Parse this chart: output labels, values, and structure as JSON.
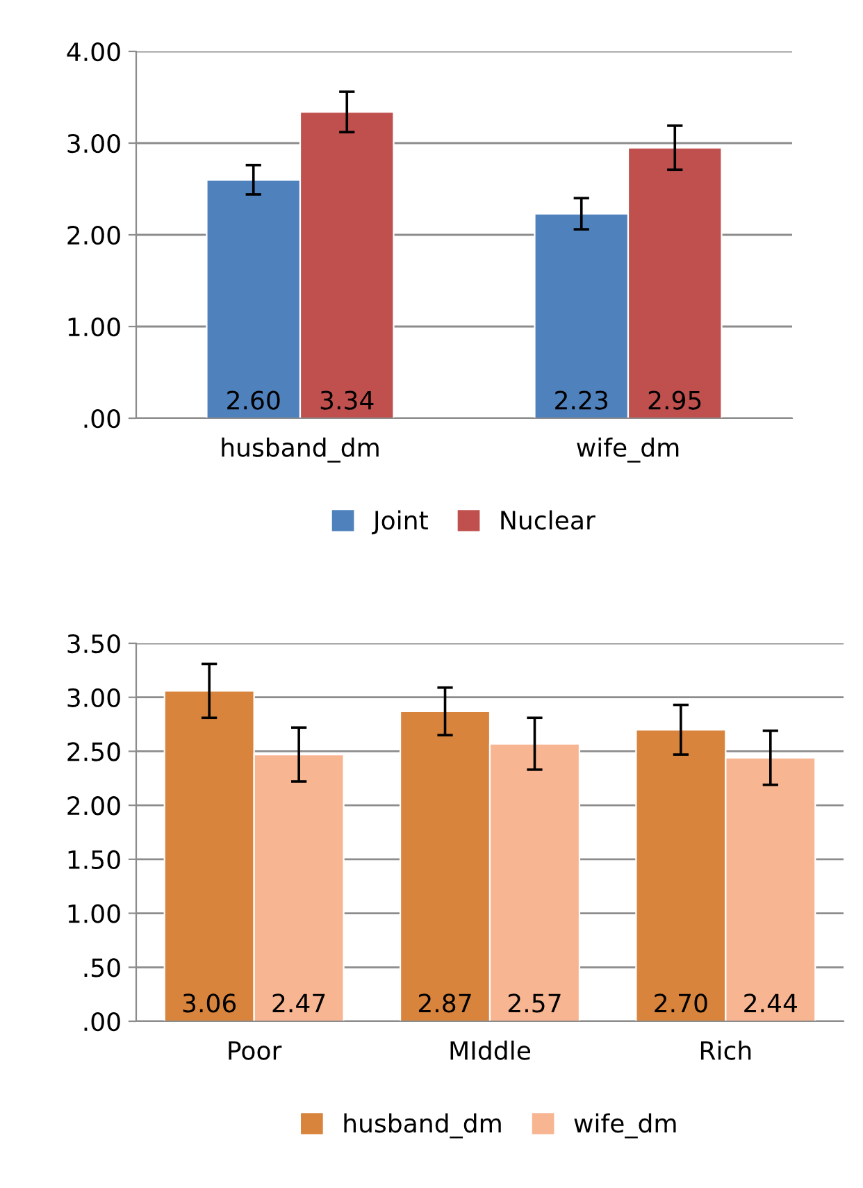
{
  "chart_data": [
    {
      "type": "bar",
      "categories": [
        "husband_dm",
        "wife_dm"
      ],
      "ylim": [
        0,
        4
      ],
      "yticks": [
        {
          "value": 0,
          "label": ".00"
        },
        {
          "value": 1,
          "label": "1.00"
        },
        {
          "value": 2,
          "label": "2.00"
        },
        {
          "value": 3,
          "label": "3.00"
        },
        {
          "value": 4,
          "label": "4.00"
        }
      ],
      "grid": "y",
      "legend": "bottom",
      "series": [
        {
          "name": "Joint",
          "color": "#4f81bd",
          "values": [
            2.6,
            2.23
          ],
          "errors": [
            0.16,
            0.17
          ],
          "value_labels": [
            "2.60",
            "2.23"
          ]
        },
        {
          "name": "Nuclear",
          "color": "#c0504d",
          "values": [
            3.34,
            2.95
          ],
          "errors": [
            0.22,
            0.24
          ],
          "value_labels": [
            "3.34",
            "2.95"
          ]
        }
      ]
    },
    {
      "type": "bar",
      "categories": [
        "Poor",
        "MIddle",
        "Rich"
      ],
      "ylim": [
        0,
        3.5
      ],
      "yticks": [
        {
          "value": 0,
          "label": ".00"
        },
        {
          "value": 0.5,
          "label": ".50"
        },
        {
          "value": 1,
          "label": "1.00"
        },
        {
          "value": 1.5,
          "label": "1.50"
        },
        {
          "value": 2,
          "label": "2.00"
        },
        {
          "value": 2.5,
          "label": "2.50"
        },
        {
          "value": 3,
          "label": "3.00"
        },
        {
          "value": 3.5,
          "label": "3.50"
        }
      ],
      "grid": "y",
      "legend": "bottom",
      "series": [
        {
          "name": "husband_dm",
          "color": "#d9843d",
          "values": [
            3.06,
            2.87,
            2.7
          ],
          "errors": [
            0.25,
            0.22,
            0.23
          ],
          "value_labels": [
            "3.06",
            "2.87",
            "2.70"
          ]
        },
        {
          "name": "wife_dm",
          "color": "#f8b592",
          "values": [
            2.47,
            2.57,
            2.44
          ],
          "errors": [
            0.25,
            0.24,
            0.25
          ],
          "value_labels": [
            "2.47",
            "2.57",
            "2.44"
          ]
        }
      ]
    }
  ]
}
